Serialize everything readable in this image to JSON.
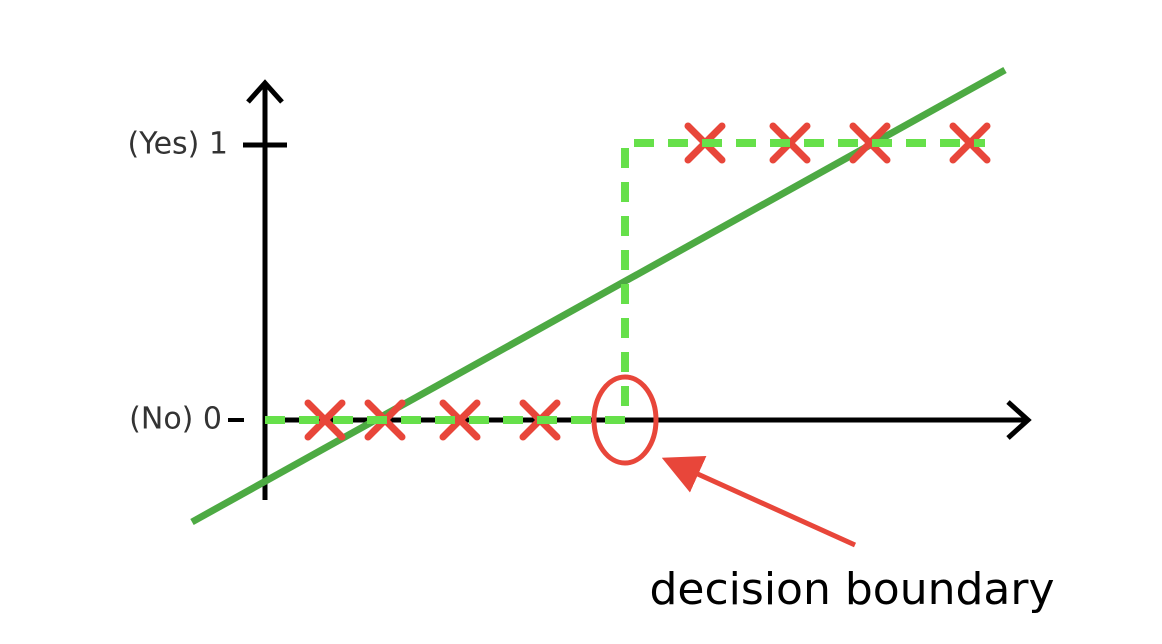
{
  "axis_labels": {
    "top": "(Yes) 1",
    "bottom": "(No) 0"
  },
  "annotation": "decision boundary"
}
